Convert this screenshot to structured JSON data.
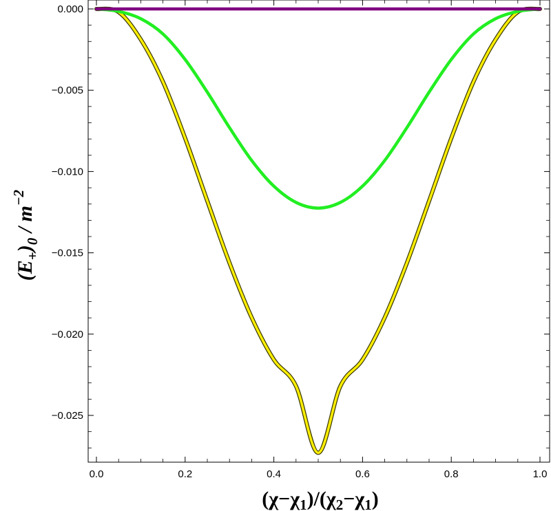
{
  "chart_data": {
    "type": "line",
    "title": "",
    "xlabel": {
      "parts": [
        "(χ−χ",
        "1",
        ")/(χ",
        "2",
        "−χ",
        "1",
        ")"
      ]
    },
    "ylabel": {
      "parts": [
        "(E",
        "+",
        ")",
        "0",
        " / m",
        "−2"
      ]
    },
    "xlim": [
      0.0,
      1.0
    ],
    "ylim": [
      -0.0275,
      0.0004
    ],
    "xticks": [
      0.0,
      0.2,
      0.4,
      0.6,
      0.8,
      1.0
    ],
    "xtick_labels": [
      "0.0",
      "0.2",
      "0.4",
      "0.6",
      "0.8",
      "1.0"
    ],
    "yticks": [
      0.0,
      -0.005,
      -0.01,
      -0.015,
      -0.02,
      -0.025
    ],
    "ytick_labels": [
      "0.000",
      "−0.005",
      "−0.010",
      "−0.015",
      "−0.020",
      "−0.025"
    ],
    "grid": false,
    "legend": "none",
    "x": [
      0.0,
      0.05,
      0.1,
      0.15,
      0.2,
      0.25,
      0.3,
      0.35,
      0.4,
      0.45,
      0.5,
      0.55,
      0.6,
      0.65,
      0.7,
      0.75,
      0.8,
      0.85,
      0.9,
      0.95,
      1.0
    ],
    "series": [
      {
        "color": "#ffee00",
        "outline": "#3a3a00",
        "values": [
          0.0,
          -0.00019,
          -0.00188,
          -0.00448,
          -0.00795,
          -0.01181,
          -0.01562,
          -0.01898,
          -0.02157,
          -0.0232,
          -0.0273,
          -0.0232,
          -0.02157,
          -0.01898,
          -0.01562,
          -0.01181,
          -0.00795,
          -0.00448,
          -0.00188,
          -0.00019,
          0.0
        ]
      },
      {
        "color": "#22ee22",
        "values": [
          0.0,
          -0.00015,
          -0.0006,
          -0.00154,
          -0.00311,
          -0.00512,
          -0.0073,
          -0.00932,
          -0.0109,
          -0.0119,
          -0.01225,
          -0.0119,
          -0.0109,
          -0.00932,
          -0.0073,
          -0.00512,
          -0.00311,
          -0.00154,
          -0.0006,
          -0.00015,
          0.0
        ]
      },
      {
        "color": "#800080",
        "values": [
          0.0,
          0.0,
          0.0,
          0.0,
          0.0,
          0.0,
          0.0,
          0.0,
          0.0,
          0.0,
          0.0,
          0.0,
          0.0,
          0.0,
          0.0,
          0.0,
          0.0,
          0.0,
          0.0,
          0.0,
          0.0
        ]
      }
    ]
  }
}
